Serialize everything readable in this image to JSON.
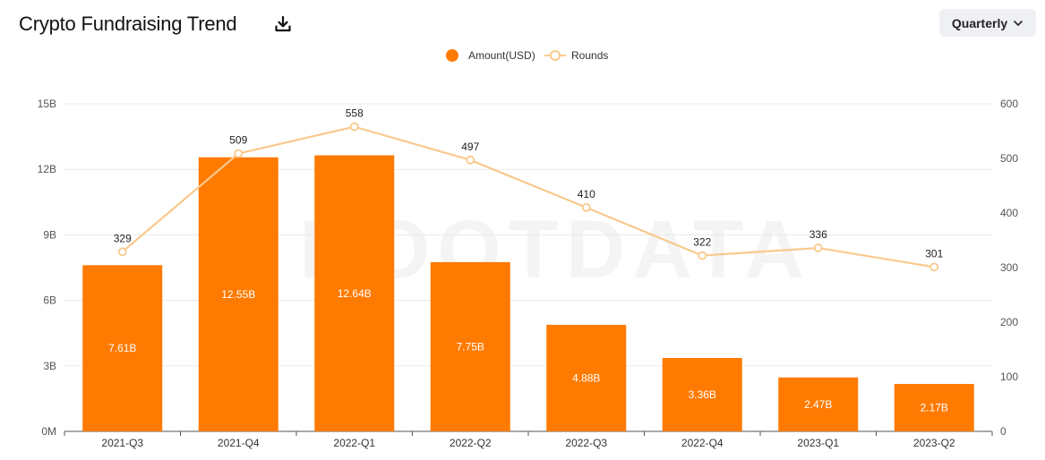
{
  "header": {
    "title": "Crypto Fundraising Trend",
    "period_select": "Quarterly"
  },
  "icons": {
    "download": "download-icon",
    "dropdown": "chevron-down-icon"
  },
  "watermark": "ROOTDATA",
  "colors": {
    "bar": "#ff7a00",
    "line": "#f9c98d",
    "grid": "#e9e9e9"
  },
  "chart_data": {
    "type": "bar",
    "title": "Crypto Fundraising Trend",
    "categories": [
      "2021-Q3",
      "2021-Q4",
      "2022-Q1",
      "2022-Q2",
      "2022-Q3",
      "2022-Q4",
      "2023-Q1",
      "2023-Q2"
    ],
    "series": [
      {
        "name": "Amount(USD)",
        "type": "bar",
        "axis": "left",
        "values": [
          7.61,
          12.55,
          12.64,
          7.75,
          4.88,
          3.36,
          2.47,
          2.17
        ],
        "labels": [
          "7.61B",
          "12.55B",
          "12.64B",
          "7.75B",
          "4.88B",
          "3.36B",
          "2.47B",
          "2.17B"
        ]
      },
      {
        "name": "Rounds",
        "type": "line",
        "axis": "right",
        "values": [
          329,
          509,
          558,
          497,
          410,
          322,
          336,
          301
        ],
        "labels": [
          "329",
          "509",
          "558",
          "497",
          "410",
          "322",
          "336",
          "301"
        ]
      }
    ],
    "y_left": {
      "ticks": [
        0,
        3,
        6,
        9,
        12,
        15
      ],
      "tick_labels": [
        "0M",
        "3B",
        "6B",
        "9B",
        "12B",
        "15B"
      ],
      "ylim": [
        0,
        15
      ]
    },
    "y_right": {
      "ticks": [
        0,
        100,
        200,
        300,
        400,
        500,
        600
      ],
      "tick_labels": [
        "0",
        "100",
        "200",
        "300",
        "400",
        "500",
        "600"
      ],
      "ylim": [
        0,
        600
      ]
    },
    "grid": true,
    "legend": "top-center"
  }
}
